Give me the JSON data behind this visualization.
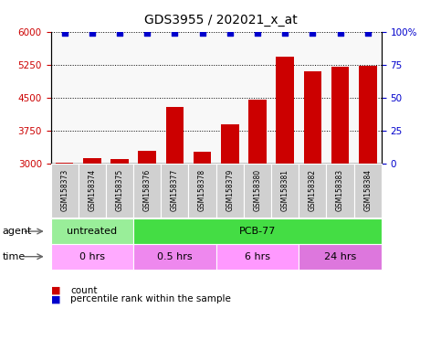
{
  "title": "GDS3955 / 202021_x_at",
  "samples": [
    "GSM158373",
    "GSM158374",
    "GSM158375",
    "GSM158376",
    "GSM158377",
    "GSM158378",
    "GSM158379",
    "GSM158380",
    "GSM158381",
    "GSM158382",
    "GSM158383",
    "GSM158384"
  ],
  "counts": [
    3020,
    3120,
    3090,
    3280,
    4280,
    3270,
    3880,
    4450,
    5420,
    5100,
    5200,
    5230
  ],
  "ylim": [
    3000,
    6000
  ],
  "yticks": [
    3000,
    3750,
    4500,
    5250,
    6000
  ],
  "right_yticks": [
    0,
    25,
    50,
    75,
    100
  ],
  "right_ylim": [
    0,
    100
  ],
  "bar_color": "#cc0000",
  "dot_color": "#0000cc",
  "sample_bg": "#d0d0d0",
  "agent_groups": [
    {
      "label": "untreated",
      "start": 0,
      "end": 3,
      "color": "#99ee99"
    },
    {
      "label": "PCB-77",
      "start": 3,
      "end": 12,
      "color": "#44dd44"
    }
  ],
  "time_groups": [
    {
      "label": "0 hrs",
      "start": 0,
      "end": 3,
      "color": "#ffaaff"
    },
    {
      "label": "0.5 hrs",
      "start": 3,
      "end": 6,
      "color": "#ee88ee"
    },
    {
      "label": "6 hrs",
      "start": 6,
      "end": 9,
      "color": "#ff99ff"
    },
    {
      "label": "24 hrs",
      "start": 9,
      "end": 12,
      "color": "#dd77dd"
    }
  ],
  "legend_count_color": "#cc0000",
  "legend_pct_color": "#0000cc"
}
